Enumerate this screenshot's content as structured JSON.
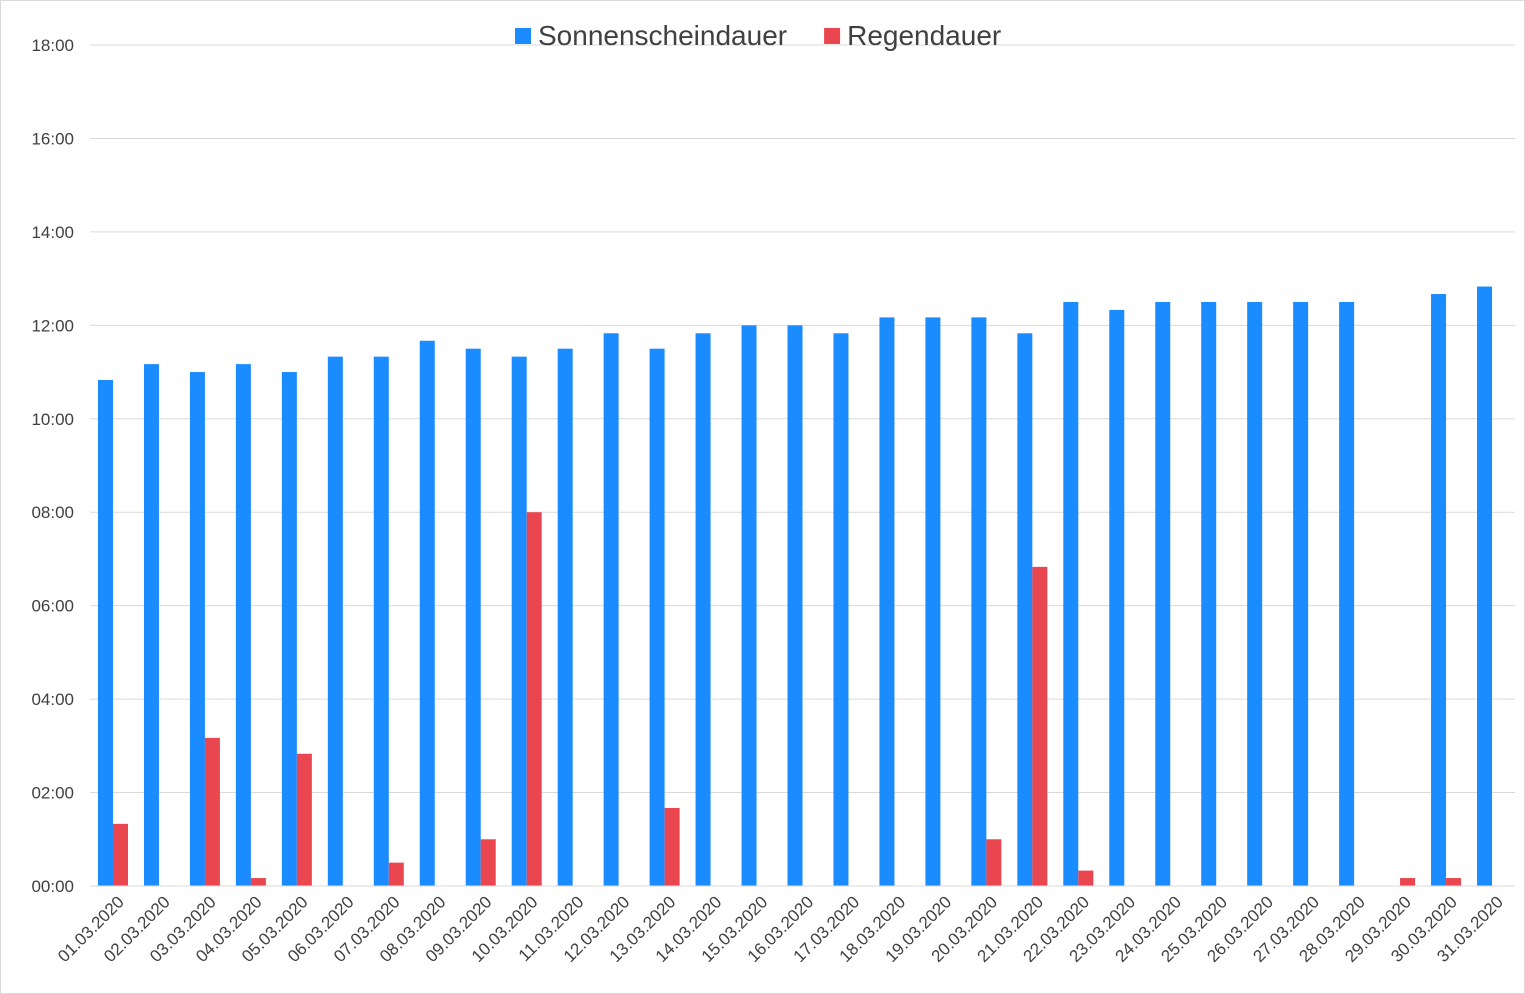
{
  "chart_data": {
    "type": "bar",
    "title": "",
    "xlabel": "",
    "ylabel": "",
    "ylim": [
      0,
      18
    ],
    "y_ticks": [
      "00:00",
      "02:00",
      "04:00",
      "06:00",
      "08:00",
      "10:00",
      "12:00",
      "14:00",
      "16:00",
      "18:00"
    ],
    "grid": true,
    "legend_position": "top",
    "categories": [
      "01.03.2020",
      "02.03.2020",
      "03.03.2020",
      "04.03.2020",
      "05.03.2020",
      "06.03.2020",
      "07.03.2020",
      "08.03.2020",
      "09.03.2020",
      "10.03.2020",
      "11.03.2020",
      "12.03.2020",
      "13.03.2020",
      "14.03.2020",
      "15.03.2020",
      "16.03.2020",
      "17.03.2020",
      "18.03.2020",
      "19.03.2020",
      "20.03.2020",
      "21.03.2020",
      "22.03.2020",
      "23.03.2020",
      "24.03.2020",
      "25.03.2020",
      "26.03.2020",
      "27.03.2020",
      "28.03.2020",
      "29.03.2020",
      "30.03.2020",
      "31.03.2020"
    ],
    "series": [
      {
        "name": "Sonnenscheindauer",
        "color": "#1a8cff",
        "values": [
          10.83,
          11.17,
          11.0,
          11.17,
          11.0,
          11.33,
          11.33,
          11.67,
          11.5,
          11.33,
          11.5,
          11.83,
          11.5,
          11.83,
          12.0,
          12.0,
          11.83,
          12.17,
          12.17,
          12.17,
          11.83,
          12.5,
          12.33,
          12.5,
          12.5,
          12.5,
          12.5,
          12.5,
          0,
          12.67,
          12.83
        ]
      },
      {
        "name": "Regendauer",
        "color": "#e9464f",
        "values": [
          1.33,
          0,
          3.17,
          0.17,
          2.83,
          0,
          0.5,
          0,
          1.0,
          8.0,
          0,
          0,
          1.67,
          0,
          0,
          0,
          0,
          0,
          0,
          1.0,
          6.83,
          0.33,
          0,
          0,
          0,
          0,
          0,
          0,
          0.17,
          0.17,
          0
        ]
      }
    ]
  }
}
